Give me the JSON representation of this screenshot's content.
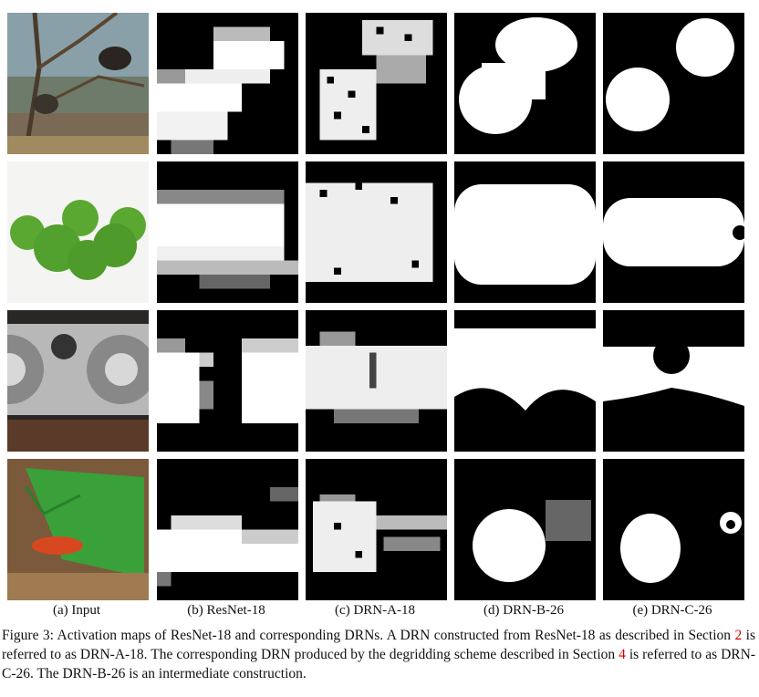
{
  "figure": {
    "rows": [
      {
        "subject": "porcupines-in-tree"
      },
      {
        "subject": "green-apples"
      },
      {
        "subject": "speaker"
      },
      {
        "subject": "salamander-under-leaf"
      }
    ],
    "columns": [
      {
        "label": "(a) Input"
      },
      {
        "label": "(b) ResNet-18"
      },
      {
        "label": "(c) DRN-A-18"
      },
      {
        "label": "(d) DRN-B-26"
      },
      {
        "label": "(e) DRN-C-26"
      }
    ],
    "caption": {
      "part1": "Figure 3: Activation maps of ResNet-18 and corresponding DRNs. A DRN constructed from ResNet-18 as described in Section ",
      "ref1": "2",
      "part2": " is referred to as DRN-A-18. The corresponding DRN produced by the degridding scheme described in Section ",
      "ref2": "4",
      "part3": " is referred to as DRN-C-26. The DRN-B-26 is an intermediate construction."
    }
  }
}
